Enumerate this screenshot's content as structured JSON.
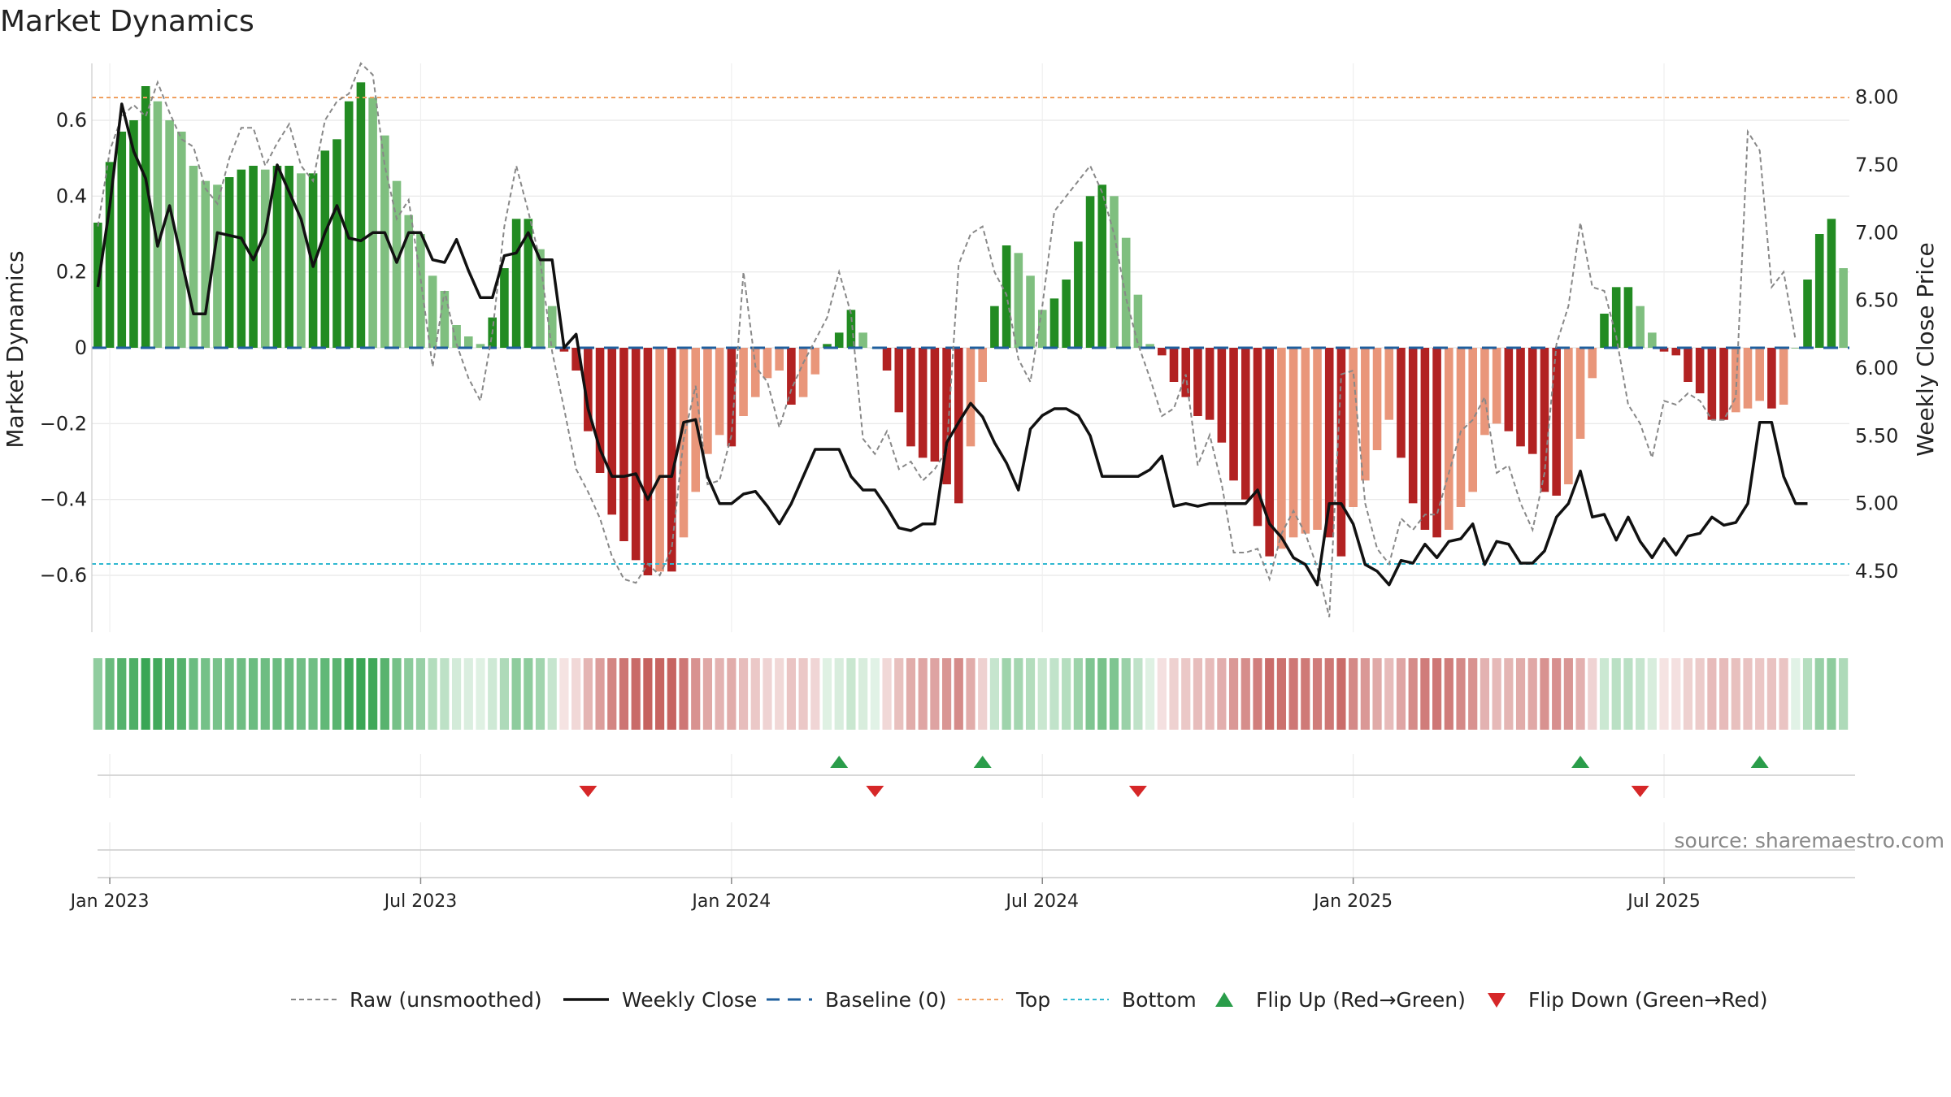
{
  "chart_data": {
    "type": "bar",
    "title": "Market Dynamics",
    "ylabel": "Market Dynamics",
    "ylabel_right": "Weekly Close Price",
    "source": "source: sharemaestro.com",
    "ylim": [
      -0.75,
      0.75
    ],
    "ylim_right": [
      4.05,
      8.25
    ],
    "y_ticks": [
      -0.6,
      -0.4,
      -0.2,
      0,
      0.2,
      0.4,
      0.6
    ],
    "y_tick_labels": [
      "−0.6",
      "−0.4",
      "−0.2",
      "0",
      "0.2",
      "0.4",
      "0.6"
    ],
    "y_right_ticks": [
      4.5,
      5.0,
      5.5,
      6.0,
      6.5,
      7.0,
      7.5,
      8.0
    ],
    "y_right_tick_labels": [
      "4.50",
      "5.00",
      "5.50",
      "6.00",
      "6.50",
      "7.00",
      "7.50",
      "8.00"
    ],
    "x_ticks": [
      {
        "label": "Jan 2023",
        "week": 1.5
      },
      {
        "label": "Jul 2023",
        "week": 27.5
      },
      {
        "label": "Jan 2024",
        "week": 53.5
      },
      {
        "label": "Jul 2024",
        "week": 79.5
      },
      {
        "label": "Jan 2025",
        "week": 105.5
      },
      {
        "label": "Jul 2025",
        "week": 131.5
      }
    ],
    "grid": true,
    "top_line": 0.66,
    "bottom_line": -0.57,
    "baseline": 0,
    "bars": [
      0.33,
      0.49,
      0.57,
      0.6,
      0.69,
      0.65,
      0.6,
      0.57,
      0.48,
      0.44,
      0.43,
      0.45,
      0.47,
      0.48,
      0.47,
      0.48,
      0.48,
      0.46,
      0.46,
      0.52,
      0.55,
      0.65,
      0.7,
      0.66,
      0.56,
      0.44,
      0.35,
      0.3,
      0.19,
      0.15,
      0.06,
      0.03,
      0.01,
      0.08,
      0.21,
      0.34,
      0.34,
      0.26,
      0.11,
      -0.01,
      -0.06,
      -0.22,
      -0.33,
      -0.44,
      -0.51,
      -0.56,
      -0.6,
      -0.59,
      -0.59,
      -0.5,
      -0.38,
      -0.28,
      -0.23,
      -0.26,
      -0.18,
      -0.13,
      -0.08,
      -0.06,
      -0.15,
      -0.13,
      -0.07,
      0.01,
      0.04,
      0.1,
      0.04,
      0.0,
      -0.06,
      -0.17,
      -0.26,
      -0.29,
      -0.3,
      -0.36,
      -0.41,
      -0.26,
      -0.09,
      0.11,
      0.27,
      0.25,
      0.19,
      0.1,
      0.13,
      0.18,
      0.28,
      0.4,
      0.43,
      0.4,
      0.29,
      0.14,
      0.01,
      -0.02,
      -0.09,
      -0.13,
      -0.18,
      -0.19,
      -0.25,
      -0.35,
      -0.4,
      -0.47,
      -0.55,
      -0.53,
      -0.5,
      -0.49,
      -0.48,
      -0.5,
      -0.55,
      -0.42,
      -0.35,
      -0.27,
      -0.19,
      -0.29,
      -0.41,
      -0.48,
      -0.5,
      -0.48,
      -0.42,
      -0.38,
      -0.23,
      -0.2,
      -0.22,
      -0.26,
      -0.28,
      -0.38,
      -0.39,
      -0.36,
      -0.24,
      -0.08,
      0.09,
      0.16,
      0.16,
      0.11,
      0.04,
      -0.01,
      -0.02,
      -0.09,
      -0.12,
      -0.19,
      -0.19,
      -0.17,
      -0.16,
      -0.14,
      -0.16,
      -0.15,
      0.0,
      0.18,
      0.3,
      0.34,
      0.21
    ],
    "raw": [
      0.32,
      0.52,
      0.61,
      0.64,
      0.61,
      0.7,
      0.62,
      0.55,
      0.53,
      0.42,
      0.38,
      0.5,
      0.58,
      0.58,
      0.48,
      0.54,
      0.59,
      0.48,
      0.44,
      0.6,
      0.65,
      0.67,
      0.75,
      0.72,
      0.48,
      0.34,
      0.39,
      0.18,
      -0.05,
      0.15,
      0.01,
      -0.08,
      -0.14,
      0.04,
      0.32,
      0.48,
      0.36,
      0.23,
      -0.01,
      -0.16,
      -0.32,
      -0.38,
      -0.45,
      -0.55,
      -0.61,
      -0.62,
      -0.57,
      -0.6,
      -0.53,
      -0.24,
      -0.1,
      -0.36,
      -0.35,
      -0.23,
      0.2,
      -0.05,
      -0.09,
      -0.21,
      -0.11,
      -0.04,
      0.02,
      0.08,
      0.2,
      0.09,
      -0.24,
      -0.28,
      -0.22,
      -0.32,
      -0.3,
      -0.35,
      -0.32,
      -0.27,
      0.22,
      0.3,
      0.32,
      0.2,
      0.14,
      -0.03,
      -0.09,
      0.11,
      0.36,
      0.4,
      0.44,
      0.48,
      0.41,
      0.3,
      0.13,
      0.01,
      -0.08,
      -0.18,
      -0.16,
      -0.07,
      -0.31,
      -0.23,
      -0.36,
      -0.54,
      -0.54,
      -0.53,
      -0.61,
      -0.49,
      -0.43,
      -0.49,
      -0.58,
      -0.71,
      -0.07,
      -0.06,
      -0.41,
      -0.53,
      -0.57,
      -0.45,
      -0.48,
      -0.44,
      -0.44,
      -0.33,
      -0.22,
      -0.19,
      -0.13,
      -0.33,
      -0.31,
      -0.41,
      -0.48,
      -0.33,
      0.01,
      0.11,
      0.33,
      0.16,
      0.15,
      0.03,
      -0.15,
      -0.2,
      -0.29,
      -0.14,
      -0.15,
      -0.12,
      -0.14,
      -0.19,
      -0.19,
      -0.13,
      0.57,
      0.52,
      0.16,
      0.2,
      0.02
    ],
    "close": [
      6.6,
      7.2,
      7.95,
      7.6,
      7.4,
      6.9,
      7.2,
      6.8,
      6.4,
      6.4,
      7.0,
      6.98,
      6.96,
      6.8,
      7.0,
      7.5,
      7.3,
      7.1,
      6.75,
      7.0,
      7.2,
      6.96,
      6.94,
      7.0,
      7.0,
      6.78,
      7.0,
      7.0,
      6.8,
      6.78,
      6.95,
      6.72,
      6.52,
      6.52,
      6.83,
      6.85,
      7.0,
      6.8,
      6.8,
      6.15,
      6.25,
      5.7,
      5.4,
      5.2,
      5.2,
      5.22,
      5.03,
      5.2,
      5.2,
      5.6,
      5.62,
      5.2,
      5.0,
      5.0,
      5.07,
      5.09,
      4.98,
      4.85,
      5.0,
      5.2,
      5.4,
      5.4,
      5.4,
      5.2,
      5.1,
      5.1,
      4.97,
      4.82,
      4.8,
      4.85,
      4.85,
      5.45,
      5.6,
      5.74,
      5.64,
      5.45,
      5.3,
      5.1,
      5.55,
      5.65,
      5.7,
      5.7,
      5.65,
      5.5,
      5.2,
      5.2,
      5.2,
      5.2,
      5.25,
      5.35,
      4.98,
      5.0,
      4.98,
      5.0,
      5.0,
      5.0,
      5.0,
      5.1,
      4.85,
      4.75,
      4.6,
      4.55,
      4.4,
      5.0,
      5.0,
      4.85,
      4.55,
      4.5,
      4.4,
      4.58,
      4.56,
      4.7,
      4.6,
      4.72,
      4.74,
      4.85,
      4.55,
      4.72,
      4.7,
      4.56,
      4.56,
      4.65,
      4.9,
      5.0,
      5.24,
      4.9,
      4.92,
      4.73,
      4.9,
      4.72,
      4.6,
      4.74,
      4.62,
      4.76,
      4.78,
      4.9,
      4.84,
      4.86,
      5.0,
      5.6,
      5.6,
      5.2,
      5.0,
      5.0
    ],
    "flip_up_weeks": [
      62,
      74,
      124,
      139
    ],
    "flip_down_weeks": [
      41,
      65,
      87,
      129
    ],
    "legend_position": "bottom",
    "legend": [
      {
        "label": "Raw (unsmoothed)",
        "kind": "dashed-line",
        "color": "#888888"
      },
      {
        "label": "Weekly Close",
        "kind": "solid-line",
        "color": "#111111"
      },
      {
        "label": "Baseline (0)",
        "kind": "long-dash-line",
        "color": "#1f5f9e"
      },
      {
        "label": "Top",
        "kind": "dotted-line",
        "color": "#f0a060"
      },
      {
        "label": "Bottom",
        "kind": "dotted-line",
        "color": "#30b8d0"
      },
      {
        "label": "Flip Up (Red→Green)",
        "kind": "triangle-up",
        "color": "#2a9d4a"
      },
      {
        "label": "Flip Down (Green→Red)",
        "kind": "triangle-down",
        "color": "#d62728"
      }
    ],
    "colors": {
      "strong_green": "#228b22",
      "light_green": "#7fbf7f",
      "strong_red": "#b22222",
      "light_red": "#e9967a",
      "flip_up": "#2a9d4a",
      "flip_down": "#d62728",
      "top_line": "#f0a060",
      "bottom_line": "#30b8d0",
      "baseline": "#1f5f9e"
    }
  }
}
